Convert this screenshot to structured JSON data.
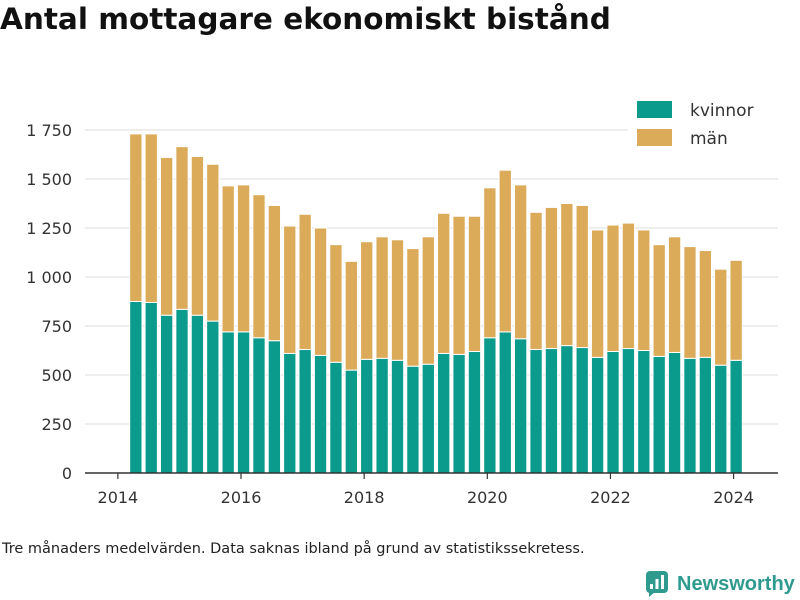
{
  "chart_data": {
    "type": "bar",
    "stacked": true,
    "title": "Antal mottagare ekonomiskt bistånd",
    "x": [
      "2014-04",
      "2014-07",
      "2014-10",
      "2015-01",
      "2015-04",
      "2015-07",
      "2015-10",
      "2016-01",
      "2016-04",
      "2016-07",
      "2016-10",
      "2017-01",
      "2017-04",
      "2017-07",
      "2017-10",
      "2018-01",
      "2018-04",
      "2018-07",
      "2018-10",
      "2019-01",
      "2019-04",
      "2019-07",
      "2019-10",
      "2020-01",
      "2020-04",
      "2020-07",
      "2020-10",
      "2021-01",
      "2021-04",
      "2021-07",
      "2021-10",
      "2022-01",
      "2022-04",
      "2022-07",
      "2022-10",
      "2023-01",
      "2023-04",
      "2023-07",
      "2023-10",
      "2024-01"
    ],
    "series": [
      {
        "name": "kvinnor",
        "color": "#0a9b8c",
        "values": [
          875,
          870,
          805,
          835,
          805,
          775,
          720,
          720,
          690,
          675,
          610,
          630,
          600,
          565,
          525,
          580,
          585,
          575,
          545,
          555,
          610,
          605,
          620,
          690,
          720,
          685,
          630,
          635,
          650,
          640,
          590,
          620,
          635,
          625,
          595,
          615,
          585,
          590,
          550,
          575
        ]
      },
      {
        "name": "män",
        "color": "#dbab5a",
        "values": [
          855,
          860,
          805,
          830,
          810,
          800,
          745,
          750,
          730,
          690,
          650,
          690,
          650,
          600,
          555,
          600,
          620,
          615,
          600,
          650,
          715,
          705,
          690,
          765,
          825,
          785,
          700,
          720,
          725,
          725,
          650,
          645,
          640,
          615,
          570,
          590,
          570,
          545,
          490,
          510
        ]
      }
    ],
    "xticks": [
      "2014",
      "2016",
      "2018",
      "2020",
      "2022",
      "2024"
    ],
    "yticks": [
      0,
      250,
      500,
      750,
      1000,
      1250,
      1500,
      1750
    ],
    "ytick_labels": [
      "0",
      "250",
      "500",
      "750",
      "1 000",
      "1 250",
      "1 500",
      "1 750"
    ],
    "xlim": [
      "2013-06-19",
      "2024-09-21"
    ],
    "ylim": [
      0,
      1750
    ],
    "grid": true,
    "legend": "top-right"
  },
  "footnote": "Tre månaders medelvärden. Data saknas ibland på grund av statistikssekretess.",
  "brand": {
    "name": "Newsworthy",
    "icon": "bar-chart-logo-icon",
    "color": "#2f9b8f"
  }
}
